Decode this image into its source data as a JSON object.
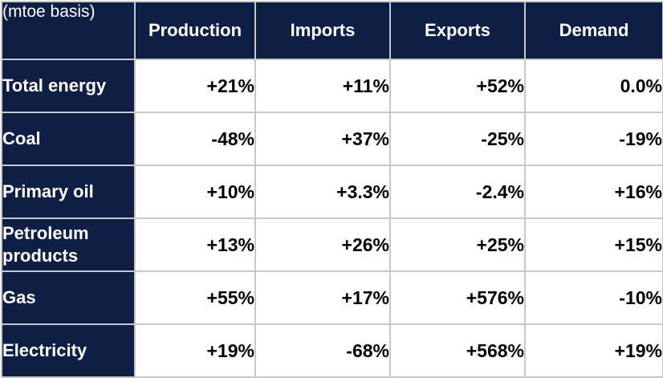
{
  "chart_data": {
    "type": "table",
    "corner_label": "(mtoe basis)",
    "columns": [
      "Production",
      "Imports",
      "Exports",
      "Demand"
    ],
    "rows": [
      {
        "label": "Total energy",
        "values": [
          "+21%",
          "+11%",
          "+52%",
          "0.0%"
        ]
      },
      {
        "label": "Coal",
        "values": [
          "-48%",
          "+37%",
          "-25%",
          "-19%"
        ]
      },
      {
        "label": "Primary oil",
        "values": [
          "+10%",
          "+3.3%",
          "-2.4%",
          "+16%"
        ]
      },
      {
        "label": "Petroleum products",
        "values": [
          "+13%",
          "+26%",
          "+25%",
          "+15%"
        ]
      },
      {
        "label": "Gas",
        "values": [
          "+55%",
          "+17%",
          "+576%",
          "-10%"
        ]
      },
      {
        "label": "Electricity",
        "values": [
          "+19%",
          "-68%",
          "+568%",
          "+19%"
        ]
      }
    ]
  },
  "colors": {
    "header_bg": "#0f1e45",
    "header_text": "#ffffff",
    "cell_bg": "#ffffff",
    "grid": "#c8c8c8"
  }
}
